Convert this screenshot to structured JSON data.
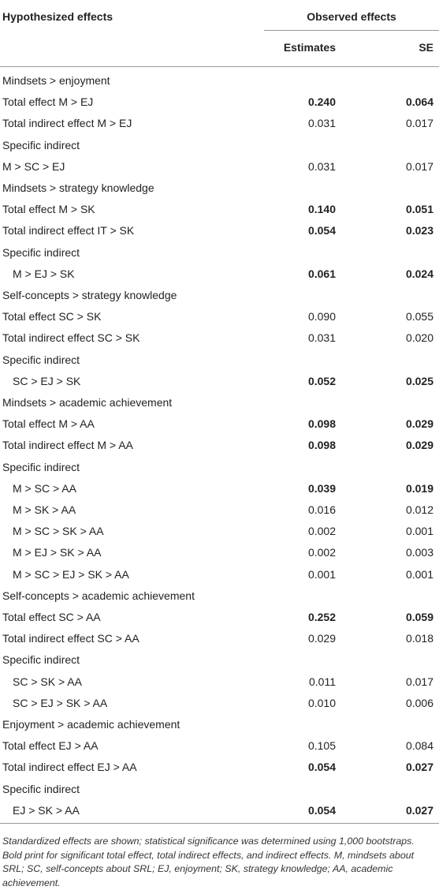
{
  "header": {
    "row_label": "Hypothesized effects",
    "group": "Observed effects",
    "columns": [
      "Estimates",
      "SE"
    ]
  },
  "table": {
    "rows": [
      {
        "label": "Mindsets > enjoyment"
      },
      {
        "label": "Total effect M > EJ",
        "estimate": "0.240",
        "se": "0.064",
        "bold": true
      },
      {
        "label": "Total indirect effect M > EJ",
        "estimate": "0.031",
        "se": "0.017"
      },
      {
        "label": "Specific indirect"
      },
      {
        "label": "M > SC > EJ",
        "estimate": "0.031",
        "se": "0.017"
      },
      {
        "label": "Mindsets > strategy knowledge"
      },
      {
        "label": "Total effect M > SK",
        "estimate": "0.140",
        "se": "0.051",
        "bold": true
      },
      {
        "label": "Total indirect effect IT > SK",
        "estimate": "0.054",
        "se": "0.023",
        "bold": true
      },
      {
        "label": "Specific indirect"
      },
      {
        "label": "M > EJ > SK",
        "estimate": "0.061",
        "se": "0.024",
        "bold": true,
        "indent": true
      },
      {
        "label": "Self-concepts > strategy knowledge"
      },
      {
        "label": "Total effect SC > SK",
        "estimate": "0.090",
        "se": "0.055"
      },
      {
        "label": "Total indirect effect SC > SK",
        "estimate": "0.031",
        "se": "0.020"
      },
      {
        "label": "Specific indirect"
      },
      {
        "label": "SC > EJ > SK",
        "estimate": "0.052",
        "se": "0.025",
        "bold": true,
        "indent": true
      },
      {
        "label": "Mindsets > academic achievement"
      },
      {
        "label": "Total effect M > AA",
        "estimate": "0.098",
        "se": "0.029",
        "bold": true
      },
      {
        "label": "Total indirect effect M > AA",
        "estimate": "0.098",
        "se": "0.029",
        "bold": true
      },
      {
        "label": "Specific indirect"
      },
      {
        "label": "M > SC > AA",
        "estimate": "0.039",
        "se": "0.019",
        "bold": true,
        "indent": true
      },
      {
        "label": "M > SK > AA",
        "estimate": "0.016",
        "se": "0.012",
        "indent": true
      },
      {
        "label": "M > SC > SK > AA",
        "estimate": "0.002",
        "se": "0.001",
        "indent": true
      },
      {
        "label": "M > EJ > SK > AA",
        "estimate": "0.002",
        "se": "0.003",
        "indent": true
      },
      {
        "label": "M > SC > EJ > SK > AA",
        "estimate": "0.001",
        "se": "0.001",
        "indent": true
      },
      {
        "label": "Self-concepts > academic achievement"
      },
      {
        "label": "Total effect SC > AA",
        "estimate": "0.252",
        "se": "0.059",
        "bold": true
      },
      {
        "label": "Total indirect effect SC > AA",
        "estimate": "0.029",
        "se": "0.018"
      },
      {
        "label": "Specific indirect"
      },
      {
        "label": "SC > SK > AA",
        "estimate": "0.011",
        "se": "0.017",
        "indent": true
      },
      {
        "label": "SC > EJ > SK > AA",
        "estimate": "0.010",
        "se": "0.006",
        "indent": true
      },
      {
        "label": "Enjoyment > academic achievement"
      },
      {
        "label": "Total effect EJ > AA",
        "estimate": "0.105",
        "se": "0.084"
      },
      {
        "label": "Total indirect effect EJ > AA",
        "estimate": "0.054",
        "se": "0.027",
        "bold": true
      },
      {
        "label": "Specific indirect"
      },
      {
        "label": "EJ > SK > AA",
        "estimate": "0.054",
        "se": "0.027",
        "bold": true,
        "indent": true
      }
    ]
  },
  "footnote": "Standardized effects are shown; statistical significance was determined using 1,000 bootstraps. Bold print for significant total effect, total indirect effects, and indirect effects. M, mindsets about SRL; SC, self-concepts about SRL; EJ, enjoyment; SK, strategy knowledge; AA, academic achievement."
}
